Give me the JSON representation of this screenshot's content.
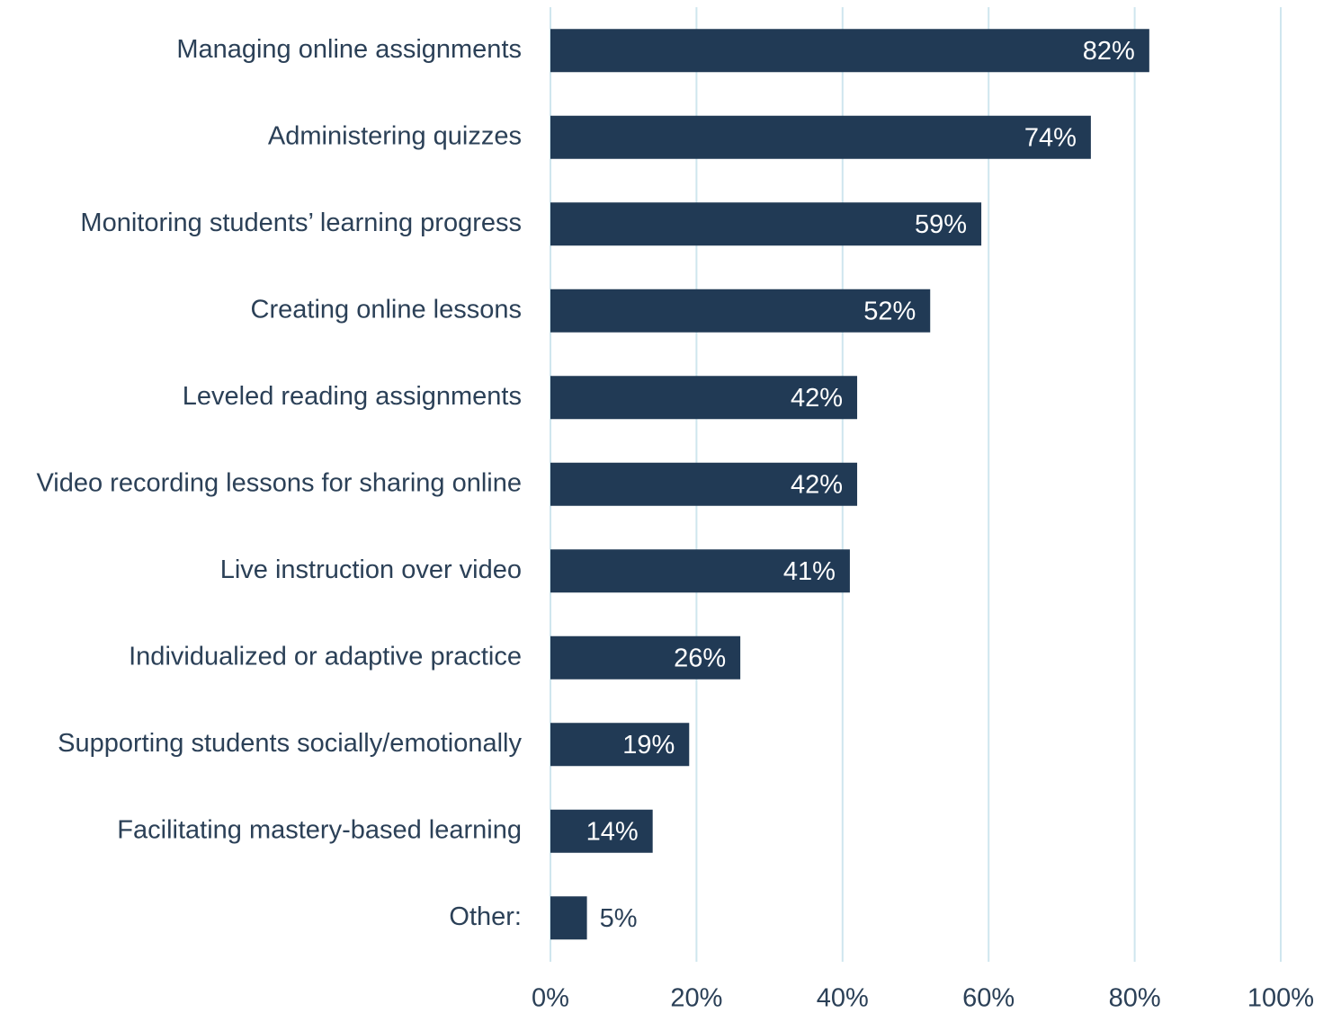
{
  "chart_data": {
    "type": "bar",
    "orientation": "horizontal",
    "categories": [
      "Managing online assignments",
      "Administering quizzes",
      "Monitoring students’ learning progress",
      "Creating online lessons",
      "Leveled reading assignments",
      "Video recording lessons for sharing online",
      "Live instruction over video",
      "Individualized or adaptive practice",
      "Supporting students socially/emotionally",
      "Facilitating mastery-based learning",
      "Other:"
    ],
    "values": [
      82,
      74,
      59,
      52,
      42,
      42,
      41,
      26,
      19,
      14,
      5
    ],
    "value_labels": [
      "82%",
      "74%",
      "59%",
      "52%",
      "42%",
      "42%",
      "41%",
      "26%",
      "19%",
      "14%",
      "5%"
    ],
    "color": "#213a55",
    "xlim": [
      0,
      100
    ],
    "xticks": [
      {
        "value": 0,
        "label": "0%"
      },
      {
        "value": 20,
        "label": "20%"
      },
      {
        "value": 40,
        "label": "40%"
      },
      {
        "value": 60,
        "label": "60%"
      },
      {
        "value": 80,
        "label": "80%"
      },
      {
        "value": 100,
        "label": "100%"
      }
    ],
    "grid": true
  }
}
